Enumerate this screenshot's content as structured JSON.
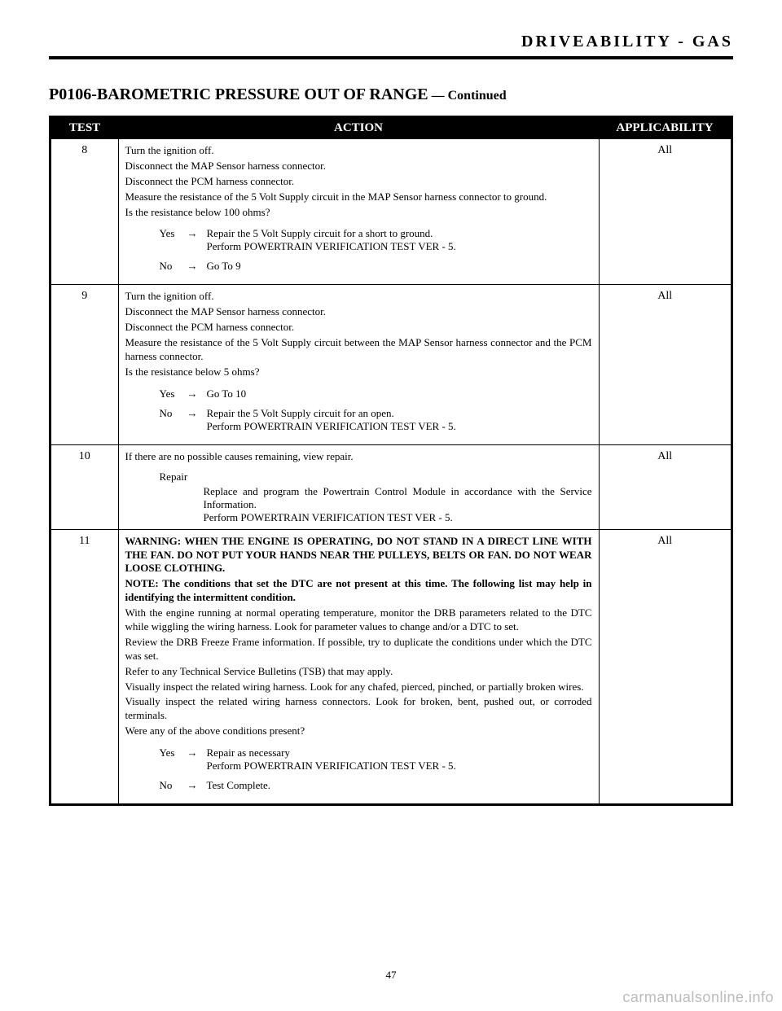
{
  "header": {
    "section": "DRIVEABILITY - GAS"
  },
  "title": {
    "code": "P0106-BAROMETRIC PRESSURE OUT OF RANGE",
    "separator": " — ",
    "continued": "Continued"
  },
  "columns": {
    "test": "TEST",
    "action": "ACTION",
    "applicability": "APPLICABILITY"
  },
  "rows": [
    {
      "num": "8",
      "applicability": "All",
      "paras": [
        "Turn the ignition off.",
        "Disconnect the MAP Sensor harness connector.",
        "Disconnect the PCM harness connector.",
        "Measure the resistance of the 5 Volt Supply circuit in the MAP Sensor harness connector to ground.",
        "Is the resistance below 100 ohms?"
      ],
      "yes": "Repair the 5 Volt Supply circuit for a short to ground.\nPerform POWERTRAIN VERIFICATION TEST VER - 5.",
      "no": "Go To   9"
    },
    {
      "num": "9",
      "applicability": "All",
      "paras": [
        "Turn the ignition off.",
        "Disconnect the MAP Sensor harness connector.",
        "Disconnect the PCM harness connector.",
        "Measure the resistance of the 5 Volt Supply circuit between the MAP Sensor harness connector and the PCM harness connector.",
        "Is the resistance below 5 ohms?"
      ],
      "yes": "Go To   10",
      "no": "Repair the 5 Volt Supply circuit for an open.\nPerform POWERTRAIN VERIFICATION TEST VER - 5."
    },
    {
      "num": "10",
      "applicability": "All",
      "paras": [
        "If there are no possible causes remaining, view repair."
      ],
      "repair_label": "Repair",
      "repair": "Replace and program the Powertrain Control Module in accordance with the Service Information.\nPerform POWERTRAIN VERIFICATION TEST VER - 5."
    },
    {
      "num": "11",
      "applicability": "All",
      "paras": [
        "WARNING: WHEN THE ENGINE IS OPERATING, DO NOT STAND IN A DIRECT LINE WITH THE FAN. DO NOT PUT YOUR HANDS NEAR THE PULLEYS, BELTS OR FAN. DO NOT WEAR LOOSE CLOTHING.",
        "NOTE: The conditions that set the DTC are not present at this time. The following list may help in identifying the intermittent condition.",
        "With the engine running at normal operating temperature, monitor the DRB parameters related to the DTC while wiggling the wiring harness. Look for parameter values to change and/or a DTC to set.",
        "Review the DRB Freeze Frame information. If possible, try to duplicate the conditions under which the DTC was set.",
        "Refer to any Technical Service Bulletins (TSB) that may apply.",
        "Visually inspect the related wiring harness. Look for any chafed, pierced, pinched, or partially broken wires.",
        "Visually inspect the related wiring harness connectors. Look for broken, bent, pushed out, or corroded terminals.",
        "Were any of the above conditions present?"
      ],
      "yes": "Repair as necessary\nPerform POWERTRAIN VERIFICATION TEST VER - 5.",
      "no": "Test Complete."
    }
  ],
  "labels": {
    "yes": "Yes",
    "no": "No",
    "arrow": "→"
  },
  "footer": {
    "page": "47",
    "watermark": "carmanualsonline.info"
  }
}
